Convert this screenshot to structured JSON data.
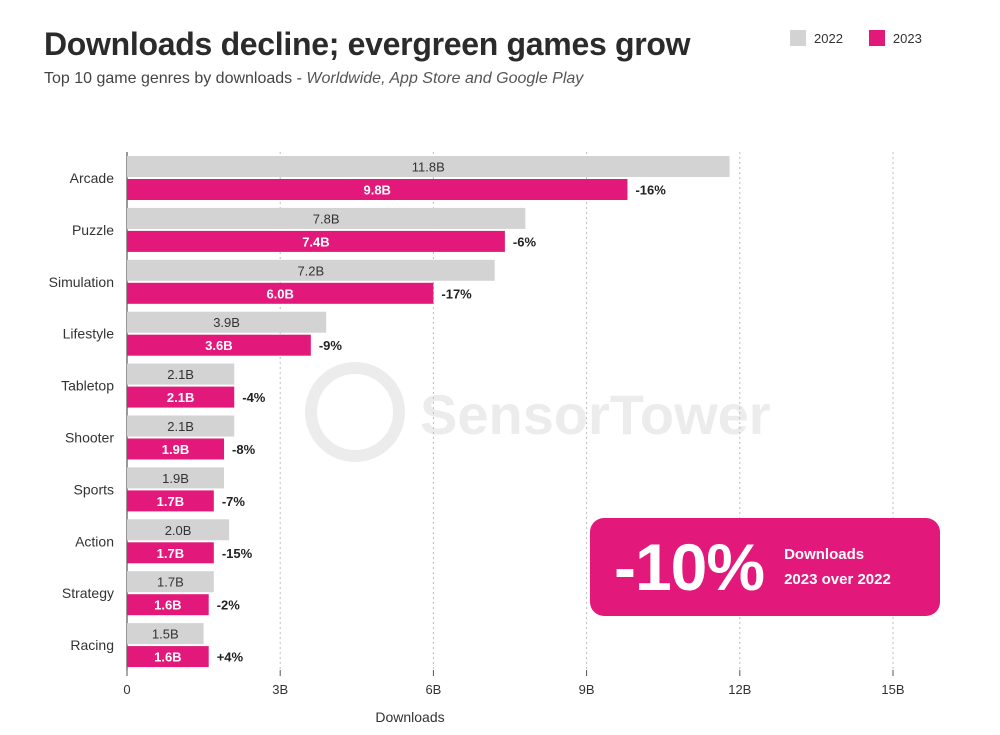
{
  "title": "Downloads decline; evergreen games grow",
  "subtitle": {
    "main": "Top 10 game genres by downloads - ",
    "italic": "Worldwide, App Store and Google Play"
  },
  "colors": {
    "y2022": "#d3d3d3",
    "y2023": "#e2197a",
    "label_2022": "#333333",
    "label_2023": "#ffffff",
    "grid": "#bdbdbd",
    "watermark": "#ececec"
  },
  "legend": [
    {
      "name": "2022",
      "color": "#d3d3d3"
    },
    {
      "name": "2023",
      "color": "#e2197a"
    }
  ],
  "watermark": "SensorTower",
  "callout": {
    "value": "-10%",
    "line1": "Downloads",
    "line2": "2023 over 2022"
  },
  "chart_data": {
    "type": "bar",
    "orientation": "horizontal",
    "xlabel": "Downloads",
    "xlim": [
      0,
      15
    ],
    "x_ticks": [
      {
        "value": 0,
        "label": "0"
      },
      {
        "value": 3,
        "label": "3B"
      },
      {
        "value": 6,
        "label": "6B"
      },
      {
        "value": 9,
        "label": "9B"
      },
      {
        "value": 12,
        "label": "12B"
      },
      {
        "value": 15,
        "label": "15B"
      }
    ],
    "grid": true,
    "legend_position": "top-right",
    "categories": [
      "Arcade",
      "Puzzle",
      "Simulation",
      "Lifestyle",
      "Tabletop",
      "Shooter",
      "Sports",
      "Action",
      "Strategy",
      "Racing"
    ],
    "series": [
      {
        "name": "2022",
        "values": [
          11.8,
          7.8,
          7.2,
          3.9,
          2.1,
          2.1,
          1.9,
          2.0,
          1.7,
          1.5
        ],
        "labels": [
          "11.8B",
          "7.8B",
          "7.2B",
          "3.9B",
          "2.1B",
          "2.1B",
          "1.9B",
          "2.0B",
          "1.7B",
          "1.5B"
        ]
      },
      {
        "name": "2023",
        "values": [
          9.8,
          7.4,
          6.0,
          3.6,
          2.1,
          1.9,
          1.7,
          1.7,
          1.6,
          1.6
        ],
        "labels": [
          "9.8B",
          "7.4B",
          "6.0B",
          "3.6B",
          "2.1B",
          "1.9B",
          "1.7B",
          "1.7B",
          "1.6B",
          "1.6B"
        ]
      }
    ],
    "changes": [
      "-16%",
      "-6%",
      "-17%",
      "-9%",
      "-4%",
      "-8%",
      "-7%",
      "-15%",
      "-2%",
      "+4%"
    ]
  }
}
